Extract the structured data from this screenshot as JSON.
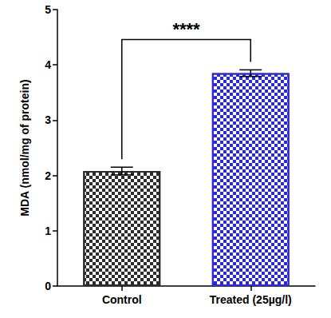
{
  "chart_data": {
    "type": "bar",
    "ylabel": "MDA (nmol/mg of protein)",
    "categories": [
      "Control",
      "Treated (25µg/l)"
    ],
    "values": [
      2.08,
      3.85
    ],
    "errors": [
      0.07,
      0.06
    ],
    "colors": [
      "#2b2b2b",
      "#2a2ad8"
    ],
    "ylim": [
      0,
      5
    ],
    "yticks": [
      0,
      1,
      2,
      3,
      4,
      5
    ],
    "grid": false,
    "annotations": [
      {
        "text": "****",
        "from": "Control",
        "to": "Treated (25µg/l)"
      }
    ]
  }
}
